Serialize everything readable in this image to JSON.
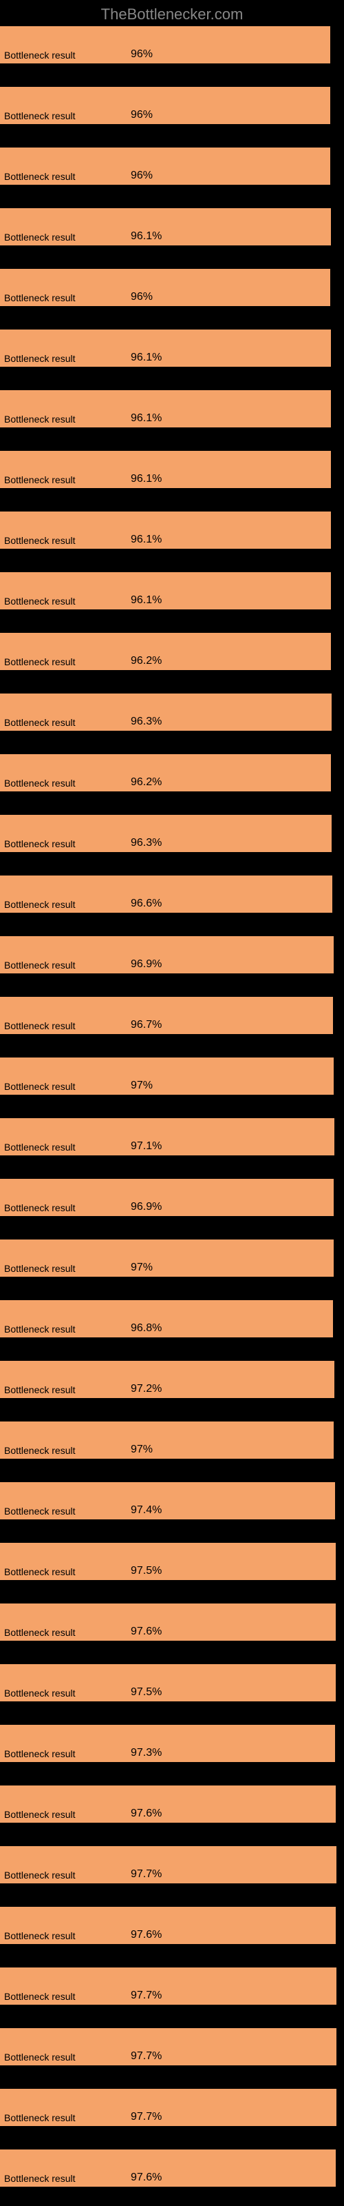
{
  "header": {
    "title": "TheBottlenecker.com"
  },
  "chart": {
    "type": "bar",
    "bar_color": "#f5a369",
    "background_color": "#000000",
    "text_color": "#000000",
    "header_color": "#888888",
    "bar_label": "Bottleneck result",
    "value_position_left": 190,
    "bars": [
      {
        "value": "96%",
        "width": 96.0
      },
      {
        "value": "96%",
        "width": 96.0
      },
      {
        "value": "96%",
        "width": 96.0
      },
      {
        "value": "96.1%",
        "width": 96.1
      },
      {
        "value": "96%",
        "width": 96.0
      },
      {
        "value": "96.1%",
        "width": 96.1
      },
      {
        "value": "96.1%",
        "width": 96.1
      },
      {
        "value": "96.1%",
        "width": 96.1
      },
      {
        "value": "96.1%",
        "width": 96.1
      },
      {
        "value": "96.1%",
        "width": 96.1
      },
      {
        "value": "96.2%",
        "width": 96.2
      },
      {
        "value": "96.3%",
        "width": 96.3
      },
      {
        "value": "96.2%",
        "width": 96.2
      },
      {
        "value": "96.3%",
        "width": 96.3
      },
      {
        "value": "96.6%",
        "width": 96.6
      },
      {
        "value": "96.9%",
        "width": 96.9
      },
      {
        "value": "96.7%",
        "width": 96.7
      },
      {
        "value": "97%",
        "width": 97.0
      },
      {
        "value": "97.1%",
        "width": 97.1
      },
      {
        "value": "96.9%",
        "width": 96.9
      },
      {
        "value": "97%",
        "width": 97.0
      },
      {
        "value": "96.8%",
        "width": 96.8
      },
      {
        "value": "97.2%",
        "width": 97.2
      },
      {
        "value": "97%",
        "width": 97.0
      },
      {
        "value": "97.4%",
        "width": 97.4
      },
      {
        "value": "97.5%",
        "width": 97.5
      },
      {
        "value": "97.6%",
        "width": 97.6
      },
      {
        "value": "97.5%",
        "width": 97.5
      },
      {
        "value": "97.3%",
        "width": 97.3
      },
      {
        "value": "97.6%",
        "width": 97.6
      },
      {
        "value": "97.7%",
        "width": 97.7
      },
      {
        "value": "97.6%",
        "width": 97.6
      },
      {
        "value": "97.7%",
        "width": 97.7
      },
      {
        "value": "97.7%",
        "width": 97.7
      },
      {
        "value": "97.7%",
        "width": 97.7
      },
      {
        "value": "97.6%",
        "width": 97.6
      }
    ]
  }
}
